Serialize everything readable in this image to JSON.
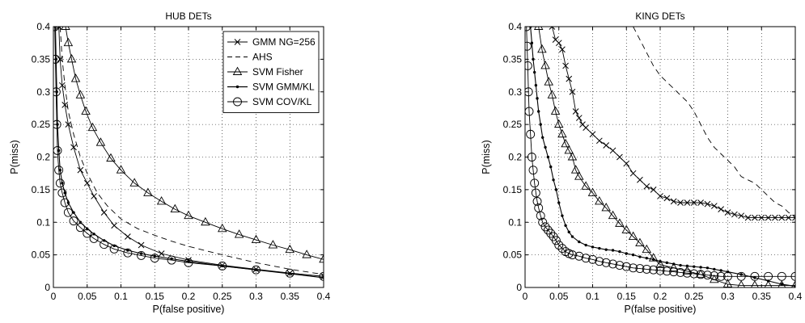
{
  "chart_data": [
    {
      "type": "line",
      "title": "HUB DETs",
      "xlabel": "P(false positive)",
      "ylabel": "P(miss)",
      "xlim": [
        0,
        0.4
      ],
      "ylim": [
        0,
        0.4
      ],
      "x_ticks": [
        0,
        0.05,
        0.1,
        0.15,
        0.2,
        0.25,
        0.3,
        0.35,
        0.4
      ],
      "y_ticks": [
        0,
        0.05,
        0.1,
        0.15,
        0.2,
        0.25,
        0.3,
        0.35,
        0.4
      ],
      "x_tick_labels": [
        "0",
        "0.05",
        "0.1",
        "0.15",
        "0.2",
        "0.25",
        "0.3",
        "0.35",
        "0.4"
      ],
      "y_tick_labels": [
        "0",
        "0.05",
        "0.1",
        "0.15",
        "0.2",
        "0.25",
        "0.3",
        "0.35",
        "0.4"
      ],
      "grid": true,
      "legend_position": "top-right",
      "series": [
        {
          "name": "GMM NG=256",
          "marker": "x",
          "dash": "solid",
          "x": [
            0.008,
            0.01,
            0.013,
            0.017,
            0.022,
            0.03,
            0.04,
            0.05,
            0.06,
            0.075,
            0.09,
            0.11,
            0.13,
            0.16,
            0.2,
            0.25,
            0.3,
            0.35,
            0.4
          ],
          "y": [
            0.4,
            0.35,
            0.31,
            0.28,
            0.25,
            0.215,
            0.18,
            0.16,
            0.14,
            0.115,
            0.095,
            0.078,
            0.065,
            0.052,
            0.042,
            0.034,
            0.028,
            0.022,
            0.017
          ]
        },
        {
          "name": "AHS",
          "marker": "none",
          "dash": "dashed",
          "x": [
            0.01,
            0.013,
            0.017,
            0.022,
            0.03,
            0.04,
            0.05,
            0.065,
            0.08,
            0.1,
            0.125,
            0.15,
            0.175,
            0.2,
            0.25,
            0.3,
            0.35,
            0.4
          ],
          "y": [
            0.4,
            0.35,
            0.31,
            0.27,
            0.235,
            0.2,
            0.175,
            0.145,
            0.125,
            0.105,
            0.09,
            0.08,
            0.071,
            0.063,
            0.05,
            0.038,
            0.028,
            0.02
          ]
        },
        {
          "name": "SVM Fisher",
          "marker": "triangle",
          "dash": "solid",
          "x": [
            0.018,
            0.022,
            0.027,
            0.033,
            0.04,
            0.048,
            0.058,
            0.07,
            0.085,
            0.1,
            0.12,
            0.14,
            0.16,
            0.18,
            0.2,
            0.225,
            0.25,
            0.275,
            0.3,
            0.325,
            0.35,
            0.375,
            0.4
          ],
          "y": [
            0.4,
            0.375,
            0.35,
            0.32,
            0.295,
            0.27,
            0.245,
            0.222,
            0.198,
            0.18,
            0.16,
            0.145,
            0.132,
            0.12,
            0.11,
            0.1,
            0.09,
            0.081,
            0.073,
            0.065,
            0.058,
            0.05,
            0.043
          ]
        },
        {
          "name": "SVM GMM/KL",
          "marker": "dot",
          "dash": "solid",
          "x": [
            0.003,
            0.004,
            0.005,
            0.006,
            0.008,
            0.01,
            0.013,
            0.017,
            0.022,
            0.03,
            0.04,
            0.05,
            0.06,
            0.075,
            0.09,
            0.11,
            0.13,
            0.15,
            0.175,
            0.2,
            0.25,
            0.3,
            0.35,
            0.4
          ],
          "y": [
            0.4,
            0.35,
            0.3,
            0.25,
            0.21,
            0.18,
            0.16,
            0.145,
            0.13,
            0.115,
            0.1,
            0.09,
            0.082,
            0.072,
            0.064,
            0.057,
            0.052,
            0.048,
            0.044,
            0.04,
            0.033,
            0.027,
            0.021,
            0.015
          ]
        },
        {
          "name": "SVM COV/KL",
          "marker": "circle",
          "dash": "solid",
          "x": [
            0.002,
            0.003,
            0.004,
            0.005,
            0.006,
            0.008,
            0.01,
            0.013,
            0.017,
            0.022,
            0.03,
            0.04,
            0.05,
            0.06,
            0.075,
            0.09,
            0.11,
            0.13,
            0.15,
            0.175,
            0.2,
            0.25,
            0.3,
            0.35,
            0.4
          ],
          "y": [
            0.4,
            0.35,
            0.3,
            0.25,
            0.21,
            0.18,
            0.16,
            0.145,
            0.13,
            0.115,
            0.102,
            0.092,
            0.083,
            0.075,
            0.066,
            0.059,
            0.053,
            0.049,
            0.045,
            0.042,
            0.038,
            0.033,
            0.027,
            0.022,
            0.017
          ]
        }
      ]
    },
    {
      "type": "line",
      "title": "KING DETs",
      "xlabel": "P(false positive)",
      "ylabel": "P(miss)",
      "xlim": [
        0,
        0.4
      ],
      "ylim": [
        0,
        0.4
      ],
      "x_ticks": [
        0,
        0.05,
        0.1,
        0.15,
        0.2,
        0.25,
        0.3,
        0.35,
        0.4
      ],
      "y_ticks": [
        0,
        0.05,
        0.1,
        0.15,
        0.2,
        0.25,
        0.3,
        0.35,
        0.4
      ],
      "x_tick_labels": [
        "0",
        "0.05",
        "0.1",
        "0.15",
        "0.2",
        "0.25",
        "0.3",
        "0.35",
        "0.4"
      ],
      "y_tick_labels": [
        "0",
        "0.05",
        "0.1",
        "0.15",
        "0.2",
        "0.25",
        "0.3",
        "0.35",
        "0.4"
      ],
      "grid": true,
      "series": [
        {
          "name": "GMM NG=256",
          "marker": "x",
          "dash": "solid",
          "x": [
            0.04,
            0.045,
            0.05,
            0.055,
            0.06,
            0.065,
            0.07,
            0.075,
            0.08,
            0.085,
            0.09,
            0.1,
            0.11,
            0.12,
            0.13,
            0.14,
            0.15,
            0.16,
            0.17,
            0.18,
            0.19,
            0.2,
            0.21,
            0.22,
            0.23,
            0.24,
            0.25,
            0.26,
            0.27,
            0.28,
            0.29,
            0.3,
            0.31,
            0.32,
            0.33,
            0.34,
            0.35,
            0.36,
            0.37,
            0.38,
            0.39,
            0.4
          ],
          "y": [
            0.4,
            0.38,
            0.375,
            0.365,
            0.34,
            0.32,
            0.3,
            0.27,
            0.26,
            0.25,
            0.245,
            0.235,
            0.225,
            0.218,
            0.21,
            0.2,
            0.19,
            0.175,
            0.165,
            0.155,
            0.15,
            0.14,
            0.137,
            0.132,
            0.13,
            0.13,
            0.13,
            0.13,
            0.128,
            0.125,
            0.12,
            0.115,
            0.112,
            0.11,
            0.107,
            0.107,
            0.107,
            0.107,
            0.107,
            0.107,
            0.107,
            0.107
          ]
        },
        {
          "name": "AHS",
          "marker": "none",
          "dash": "dashed",
          "x": [
            0.16,
            0.17,
            0.18,
            0.19,
            0.2,
            0.21,
            0.22,
            0.23,
            0.24,
            0.25,
            0.26,
            0.27,
            0.28,
            0.29,
            0.3,
            0.31,
            0.32,
            0.33,
            0.34,
            0.35,
            0.36,
            0.37,
            0.38,
            0.39,
            0.4
          ],
          "y": [
            0.4,
            0.38,
            0.36,
            0.34,
            0.325,
            0.315,
            0.305,
            0.295,
            0.285,
            0.27,
            0.25,
            0.23,
            0.215,
            0.205,
            0.195,
            0.185,
            0.17,
            0.165,
            0.16,
            0.15,
            0.14,
            0.13,
            0.125,
            0.115,
            0.11
          ]
        },
        {
          "name": "SVM Fisher",
          "marker": "triangle",
          "dash": "solid",
          "x": [
            0.02,
            0.025,
            0.03,
            0.035,
            0.04,
            0.045,
            0.05,
            0.055,
            0.06,
            0.065,
            0.07,
            0.075,
            0.08,
            0.09,
            0.1,
            0.11,
            0.12,
            0.13,
            0.14,
            0.15,
            0.16,
            0.17,
            0.18,
            0.19,
            0.2,
            0.22,
            0.24,
            0.26,
            0.28,
            0.3,
            0.32,
            0.34,
            0.36,
            0.38,
            0.4
          ],
          "y": [
            0.4,
            0.365,
            0.34,
            0.315,
            0.295,
            0.27,
            0.25,
            0.235,
            0.22,
            0.21,
            0.2,
            0.18,
            0.17,
            0.155,
            0.145,
            0.132,
            0.122,
            0.11,
            0.098,
            0.088,
            0.078,
            0.068,
            0.058,
            0.045,
            0.035,
            0.03,
            0.025,
            0.02,
            0.012,
            0.005,
            0.003,
            0.003,
            0.003,
            0.003,
            0.003
          ]
        },
        {
          "name": "SVM GMM/KL",
          "marker": "dot",
          "dash": "solid",
          "x": [
            0.008,
            0.01,
            0.012,
            0.014,
            0.016,
            0.018,
            0.02,
            0.023,
            0.026,
            0.03,
            0.034,
            0.038,
            0.042,
            0.046,
            0.05,
            0.055,
            0.06,
            0.065,
            0.07,
            0.08,
            0.09,
            0.1,
            0.11,
            0.12,
            0.13,
            0.14,
            0.15,
            0.16,
            0.17,
            0.18,
            0.19,
            0.2,
            0.21,
            0.22,
            0.23,
            0.24,
            0.25,
            0.26,
            0.27,
            0.28,
            0.29,
            0.3,
            0.32,
            0.34,
            0.36,
            0.38,
            0.4
          ],
          "y": [
            0.4,
            0.375,
            0.35,
            0.33,
            0.31,
            0.29,
            0.27,
            0.25,
            0.23,
            0.215,
            0.2,
            0.185,
            0.165,
            0.15,
            0.13,
            0.11,
            0.095,
            0.085,
            0.078,
            0.07,
            0.065,
            0.062,
            0.06,
            0.058,
            0.057,
            0.055,
            0.052,
            0.05,
            0.047,
            0.045,
            0.043,
            0.04,
            0.038,
            0.036,
            0.034,
            0.033,
            0.032,
            0.031,
            0.03,
            0.028,
            0.026,
            0.024,
            0.02,
            0.015,
            0.01,
            0.005,
            0.002
          ]
        },
        {
          "name": "SVM COV/KL",
          "marker": "circle",
          "dash": "solid",
          "x": [
            0.002,
            0.003,
            0.004,
            0.005,
            0.006,
            0.008,
            0.01,
            0.012,
            0.014,
            0.016,
            0.018,
            0.02,
            0.023,
            0.026,
            0.03,
            0.034,
            0.038,
            0.042,
            0.046,
            0.05,
            0.055,
            0.06,
            0.065,
            0.07,
            0.08,
            0.09,
            0.1,
            0.11,
            0.12,
            0.13,
            0.14,
            0.15,
            0.16,
            0.17,
            0.18,
            0.19,
            0.2,
            0.21,
            0.22,
            0.23,
            0.24,
            0.25,
            0.26,
            0.27,
            0.28,
            0.29,
            0.3,
            0.32,
            0.34,
            0.36,
            0.38,
            0.4
          ],
          "y": [
            0.4,
            0.37,
            0.34,
            0.3,
            0.27,
            0.235,
            0.2,
            0.18,
            0.16,
            0.145,
            0.132,
            0.122,
            0.11,
            0.1,
            0.093,
            0.088,
            0.083,
            0.078,
            0.072,
            0.065,
            0.06,
            0.055,
            0.052,
            0.05,
            0.048,
            0.045,
            0.043,
            0.04,
            0.038,
            0.036,
            0.034,
            0.032,
            0.03,
            0.029,
            0.028,
            0.027,
            0.026,
            0.025,
            0.024,
            0.023,
            0.022,
            0.021,
            0.02,
            0.019,
            0.018,
            0.017,
            0.017,
            0.017,
            0.017,
            0.017,
            0.017,
            0.017
          ]
        }
      ]
    }
  ]
}
